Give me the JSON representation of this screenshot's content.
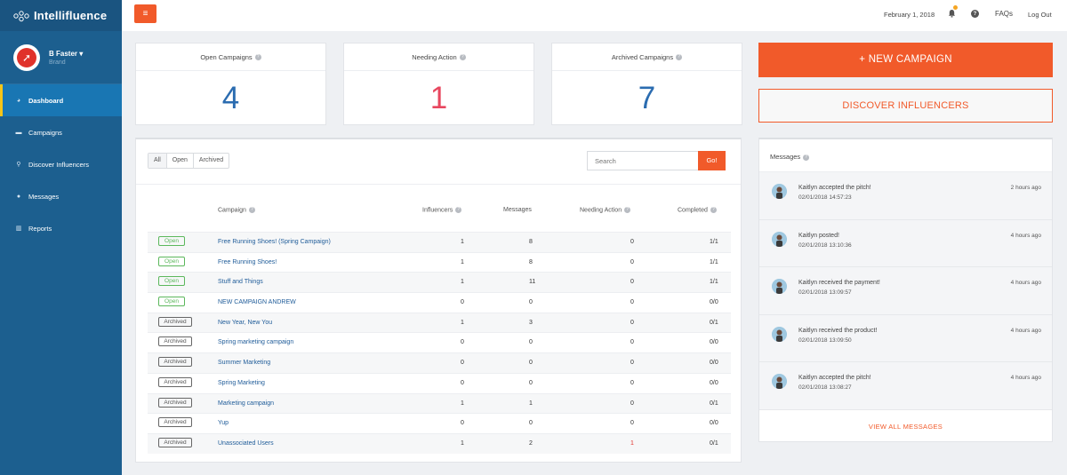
{
  "app": {
    "brand": "Intellifluence"
  },
  "profile": {
    "name": "B Faster",
    "role": "Brand"
  },
  "nav": [
    {
      "label": "Dashboard",
      "icon": "dashboard-icon"
    },
    {
      "label": "Campaigns",
      "icon": "briefcase-icon"
    },
    {
      "label": "Discover Influencers",
      "icon": "search-icon"
    },
    {
      "label": "Messages",
      "icon": "comments-icon"
    },
    {
      "label": "Reports",
      "icon": "bar-chart-icon"
    }
  ],
  "topbar": {
    "menu_icon": "≡",
    "date": "February 1, 2018",
    "faqs": "FAQs",
    "logout": "Log Out",
    "help": "?"
  },
  "stats": [
    {
      "title": "Open Campaigns",
      "value": "4",
      "color": "#2b6cb0"
    },
    {
      "title": "Needing Action",
      "value": "1",
      "color": "#e8475f"
    },
    {
      "title": "Archived Campaigns",
      "value": "7",
      "color": "#2b6cb0"
    }
  ],
  "filters": [
    "All",
    "Open",
    "Archived"
  ],
  "search": {
    "placeholder": "Search",
    "button": "Go!"
  },
  "table": {
    "headers": {
      "campaign": "Campaign",
      "influencers": "Influencers",
      "messages": "Messages",
      "needing": "Needing Action",
      "completed": "Completed"
    },
    "rows": [
      {
        "status": "Open",
        "name": "Free Running Shoes! (Spring Campaign)",
        "influencers": "1",
        "messages": "8",
        "needing": "0",
        "completed": "1/1"
      },
      {
        "status": "Open",
        "name": "Free Running Shoes!",
        "influencers": "1",
        "messages": "8",
        "needing": "0",
        "completed": "1/1"
      },
      {
        "status": "Open",
        "name": "Stuff and Things",
        "influencers": "1",
        "messages": "11",
        "needing": "0",
        "completed": "1/1"
      },
      {
        "status": "Open",
        "name": "NEW CAMPAIGN ANDREW",
        "influencers": "0",
        "messages": "0",
        "needing": "0",
        "completed": "0/0"
      },
      {
        "status": "Archived",
        "name": "New Year, New You",
        "influencers": "1",
        "messages": "3",
        "needing": "0",
        "completed": "0/1"
      },
      {
        "status": "Archived",
        "name": "Spring marketing campaign",
        "influencers": "0",
        "messages": "0",
        "needing": "0",
        "completed": "0/0"
      },
      {
        "status": "Archived",
        "name": "Summer Marketing",
        "influencers": "0",
        "messages": "0",
        "needing": "0",
        "completed": "0/0"
      },
      {
        "status": "Archived",
        "name": "Spring Marketing",
        "influencers": "0",
        "messages": "0",
        "needing": "0",
        "completed": "0/0"
      },
      {
        "status": "Archived",
        "name": "Marketing campaign",
        "influencers": "1",
        "messages": "1",
        "needing": "0",
        "completed": "0/1"
      },
      {
        "status": "Archived",
        "name": "Yup",
        "influencers": "0",
        "messages": "0",
        "needing": "0",
        "completed": "0/0"
      },
      {
        "status": "Archived",
        "name": "Unassociated Users",
        "influencers": "1",
        "messages": "2",
        "needing": "1",
        "completed": "0/1"
      }
    ]
  },
  "actions": {
    "new_campaign": "+ NEW CAMPAIGN",
    "discover": "DISCOVER INFLUENCERS"
  },
  "messages": {
    "title": "Messages",
    "items": [
      {
        "text": "Kaitlyn accepted the pitch!",
        "date": "02/01/2018 14:57:23",
        "ago": "2 hours ago"
      },
      {
        "text": "Kaitlyn posted!",
        "date": "02/01/2018 13:10:36",
        "ago": "4 hours ago"
      },
      {
        "text": "Kaitlyn received the payment!",
        "date": "02/01/2018 13:09:57",
        "ago": "4 hours ago"
      },
      {
        "text": "Kaitlyn received the product!",
        "date": "02/01/2018 13:09:50",
        "ago": "4 hours ago"
      },
      {
        "text": "Kaitlyn accepted the pitch!",
        "date": "02/01/2018 13:08:27",
        "ago": "4 hours ago"
      }
    ],
    "view_all": "VIEW ALL MESSAGES"
  },
  "colors": {
    "accent": "#f15a2a",
    "sidebar": "#1c5f8f",
    "active_nav": "#1976b3",
    "link": "#1f5c99",
    "open_badge": "#5cb85c"
  }
}
